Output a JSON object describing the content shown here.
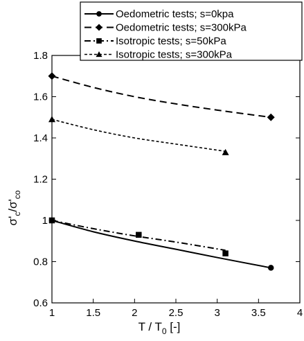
{
  "chart_data": {
    "type": "line",
    "xlabel": "T / T",
    "xlabel_sub": "0",
    "xlabel_suffix": " [-]",
    "ylabel_parts": [
      "σ'",
      "c",
      "/σ'",
      "co"
    ],
    "xlim": [
      1,
      4
    ],
    "ylim": [
      0.6,
      1.8
    ],
    "x_ticks": [
      "1",
      "1.5",
      "2",
      "2.5",
      "3",
      "3.5",
      "4"
    ],
    "y_ticks": [
      "0.6",
      "0.8",
      "1",
      "1.2",
      "1.4",
      "1.6",
      "1.8"
    ],
    "grid": false,
    "legend_position": "top-right",
    "series": [
      {
        "name": "Oedometric tests; s=0kpa",
        "marker": "circle",
        "dash": "solid",
        "points": [
          [
            1,
            1.0
          ],
          [
            3.65,
            0.77
          ]
        ],
        "curve": [
          [
            1,
            1.0
          ],
          [
            1.5,
            0.945
          ],
          [
            2,
            0.9
          ],
          [
            2.5,
            0.86
          ],
          [
            3,
            0.82
          ],
          [
            3.65,
            0.77
          ]
        ]
      },
      {
        "name": "Oedometric tests; s=300kPa",
        "marker": "diamond",
        "dash": "long-dash",
        "points": [
          [
            1,
            1.7
          ],
          [
            3.65,
            1.5
          ]
        ],
        "curve": [
          [
            1,
            1.7
          ],
          [
            1.5,
            1.645
          ],
          [
            2,
            1.6
          ],
          [
            2.5,
            1.565
          ],
          [
            3,
            1.535
          ],
          [
            3.65,
            1.5
          ]
        ]
      },
      {
        "name": "Isotropic tests; s=50kPa",
        "marker": "square",
        "dash": "dash-dot",
        "points": [
          [
            1,
            1.0
          ],
          [
            2.05,
            0.93
          ],
          [
            3.1,
            0.84
          ]
        ],
        "curve": [
          [
            1,
            1.0
          ],
          [
            1.5,
            0.96
          ],
          [
            2,
            0.925
          ],
          [
            2.5,
            0.895
          ],
          [
            3.1,
            0.855
          ]
        ]
      },
      {
        "name": "Isotropic tests; s=300kPa",
        "marker": "triangle",
        "dash": "short-dash",
        "points": [
          [
            1,
            1.49
          ],
          [
            3.1,
            1.33
          ]
        ],
        "curve": [
          [
            1,
            1.49
          ],
          [
            1.5,
            1.44
          ],
          [
            2,
            1.4
          ],
          [
            2.5,
            1.37
          ],
          [
            3.1,
            1.335
          ]
        ]
      }
    ]
  }
}
